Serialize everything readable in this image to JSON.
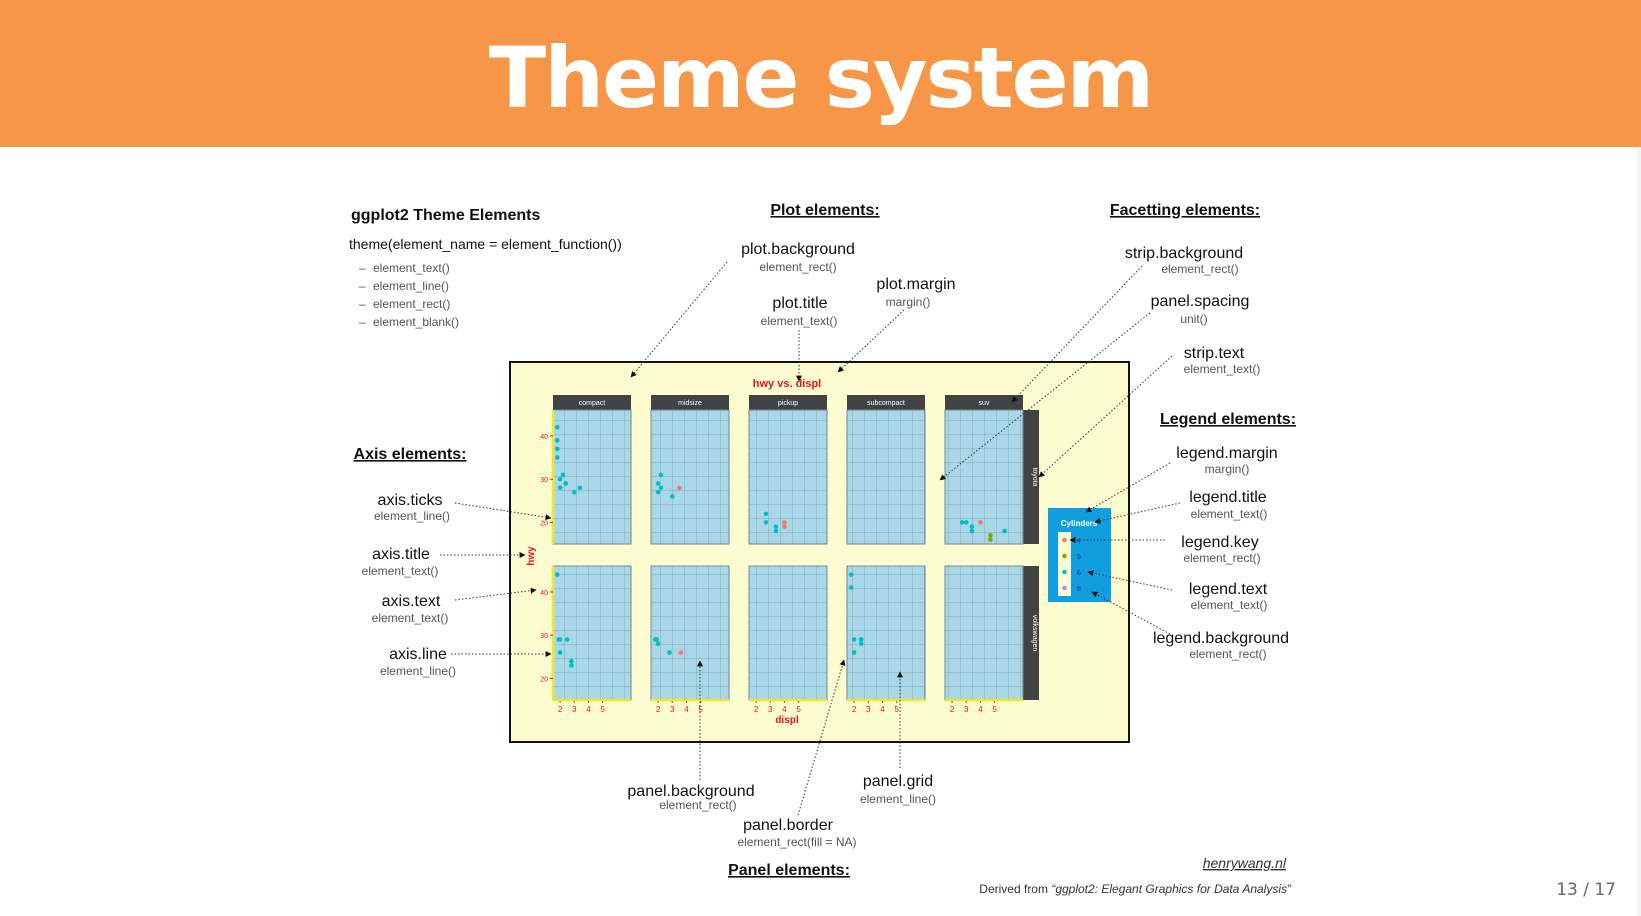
{
  "slide": {
    "title": "Theme system",
    "page": "13 / 17"
  },
  "intro": {
    "heading": "ggplot2 Theme Elements",
    "syntax": "theme(element_name = element_function())",
    "functions": [
      "element_text()",
      "element_line()",
      "element_rect()",
      "element_blank()"
    ]
  },
  "sections": {
    "plot": "Plot elements:",
    "facet": "Facetting elements:",
    "axis": "Axis elements:",
    "legend": "Legend elements:",
    "panel": "Panel elements:"
  },
  "annotations": {
    "plot_background": {
      "name": "plot.background",
      "func": "element_rect()"
    },
    "plot_title": {
      "name": "plot.title",
      "func": "element_text()"
    },
    "plot_margin": {
      "name": "plot.margin",
      "func": "margin()"
    },
    "strip_background": {
      "name": "strip.background",
      "func": "element_rect()"
    },
    "panel_spacing": {
      "name": "panel.spacing",
      "func": "unit()"
    },
    "strip_text": {
      "name": "strip.text",
      "func": "element_text()"
    },
    "axis_ticks": {
      "name": "axis.ticks",
      "func": "element_line()"
    },
    "axis_title": {
      "name": "axis.title",
      "func": "element_text()"
    },
    "axis_text": {
      "name": "axis.text",
      "func": "element_text()"
    },
    "axis_line": {
      "name": "axis.line",
      "func": "element_line()"
    },
    "legend_margin": {
      "name": "legend.margin",
      "func": "margin()"
    },
    "legend_title": {
      "name": "legend.title",
      "func": "element_text()"
    },
    "legend_key": {
      "name": "legend.key",
      "func": "element_rect()"
    },
    "legend_text": {
      "name": "legend.text",
      "func": "element_text()"
    },
    "legend_background": {
      "name": "legend.background",
      "func": "element_rect()"
    },
    "panel_background": {
      "name": "panel.background",
      "func": "element_rect()"
    },
    "panel_grid": {
      "name": "panel.grid",
      "func": "element_line()"
    },
    "panel_border": {
      "name": "panel.border",
      "func": "element_rect(fill = NA)"
    }
  },
  "credits": {
    "site": "henrywang.nl",
    "derived_prefix": "Derived from ",
    "derived_source": "“ggplot2: Elegant Graphics for Data Analysis”"
  },
  "plot": {
    "title": "hwy vs. displ",
    "xlabel": "displ",
    "ylabel": "hwy",
    "facet_cols": [
      "compact",
      "midsize",
      "pickup",
      "subcompact",
      "suv"
    ],
    "facet_rows": [
      "toyota",
      "volkswagen"
    ],
    "x_ticks": [
      "2",
      "3",
      "4",
      "5"
    ],
    "y_ticks": [
      "20",
      "30",
      "40"
    ],
    "legend_title": "Cylinders",
    "legend_labels": [
      "4",
      "5",
      "6",
      "8"
    ],
    "legend_colors": [
      "#f8766d",
      "#7cae00",
      "#00bfc4",
      "#c77cff"
    ],
    "panels": [
      {
        "row": 0,
        "col": 0,
        "points": [
          [
            1.8,
            42
          ],
          [
            1.8,
            39
          ],
          [
            1.8,
            37
          ],
          [
            1.8,
            35
          ],
          [
            2.0,
            30
          ],
          [
            2.2,
            31
          ],
          [
            2.4,
            29
          ],
          [
            2.0,
            28
          ],
          [
            3.0,
            27
          ],
          [
            3.4,
            28
          ]
        ]
      },
      {
        "row": 0,
        "col": 1,
        "points": [
          [
            2.2,
            31
          ],
          [
            2.0,
            29
          ],
          [
            2.2,
            28
          ],
          [
            2.0,
            27
          ],
          [
            3.0,
            26
          ],
          [
            3.5,
            28
          ]
        ]
      },
      {
        "row": 0,
        "col": 2,
        "points": [
          [
            2.7,
            22
          ],
          [
            2.7,
            20
          ],
          [
            3.4,
            19
          ],
          [
            3.4,
            18
          ],
          [
            4.0,
            20
          ],
          [
            4.0,
            19
          ]
        ]
      },
      {
        "row": 0,
        "col": 4,
        "points": [
          [
            2.7,
            20
          ],
          [
            3.0,
            20
          ],
          [
            3.4,
            19
          ],
          [
            3.4,
            18
          ],
          [
            4.0,
            20
          ],
          [
            4.7,
            17
          ],
          [
            4.7,
            16
          ],
          [
            5.7,
            18
          ]
        ]
      },
      {
        "row": 1,
        "col": 0,
        "points": [
          [
            1.8,
            44
          ],
          [
            1.9,
            29
          ],
          [
            2.0,
            26
          ],
          [
            2.0,
            29
          ],
          [
            2.5,
            29
          ],
          [
            2.8,
            24
          ],
          [
            2.8,
            23
          ]
        ]
      },
      {
        "row": 1,
        "col": 1,
        "points": [
          [
            1.8,
            29
          ],
          [
            1.9,
            29
          ],
          [
            2.0,
            28
          ],
          [
            2.8,
            26
          ],
          [
            3.6,
            26
          ]
        ]
      },
      {
        "row": 1,
        "col": 3,
        "points": [
          [
            1.8,
            44
          ],
          [
            1.8,
            41
          ],
          [
            2.0,
            29
          ],
          [
            2.0,
            26
          ],
          [
            2.5,
            29
          ],
          [
            2.5,
            28
          ],
          [
            2.5,
            29
          ]
        ]
      }
    ]
  }
}
